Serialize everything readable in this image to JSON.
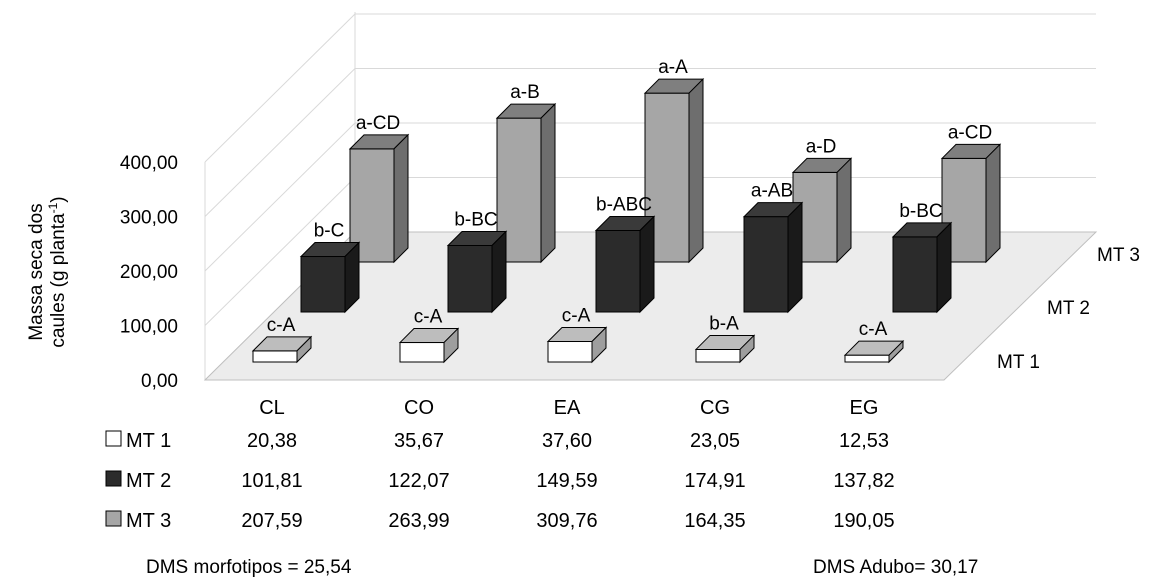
{
  "chart_data": {
    "type": "bar",
    "ylabel_line1": "Massa seca dos",
    "ylabel_line2": "caules (g planta",
    "ylabel_sup": "-1",
    "ylabel_close": ")",
    "yticks": [
      "0,00",
      "100,00",
      "200,00",
      "300,00",
      "400,00"
    ],
    "ylim": [
      0,
      400
    ],
    "grid": true,
    "categories": [
      "CL",
      "CO",
      "EA",
      "CG",
      "EG"
    ],
    "series": [
      {
        "name": "MT 1",
        "color": "#ffffff",
        "values": [
          20.38,
          35.67,
          37.6,
          23.05,
          12.53
        ],
        "value_labels": [
          "20,38",
          "35,67",
          "37,60",
          "23,05",
          "12,53"
        ],
        "significance": [
          "c-A",
          "c-A",
          "c-A",
          "b-A",
          "c-A"
        ]
      },
      {
        "name": "MT 2",
        "color": "#2b2b2b",
        "values": [
          101.81,
          122.07,
          149.59,
          174.91,
          137.82
        ],
        "value_labels": [
          "101,81",
          "122,07",
          "149,59",
          "174,91",
          "137,82"
        ],
        "significance": [
          "b-C",
          "b-BC",
          "b-ABC",
          "a-AB",
          "b-BC"
        ]
      },
      {
        "name": "MT 3",
        "color": "#a6a6a6",
        "values": [
          207.59,
          263.99,
          309.76,
          164.35,
          190.05
        ],
        "value_labels": [
          "207,59",
          "263,99",
          "309,76",
          "164,35",
          "190,05"
        ],
        "significance": [
          "a-CD",
          "a-B",
          "a-A",
          "a-D",
          "a-CD"
        ]
      }
    ],
    "notes": [
      "DMS morfotipos = 25,54",
      "DMS Adubo= 30,17"
    ]
  }
}
